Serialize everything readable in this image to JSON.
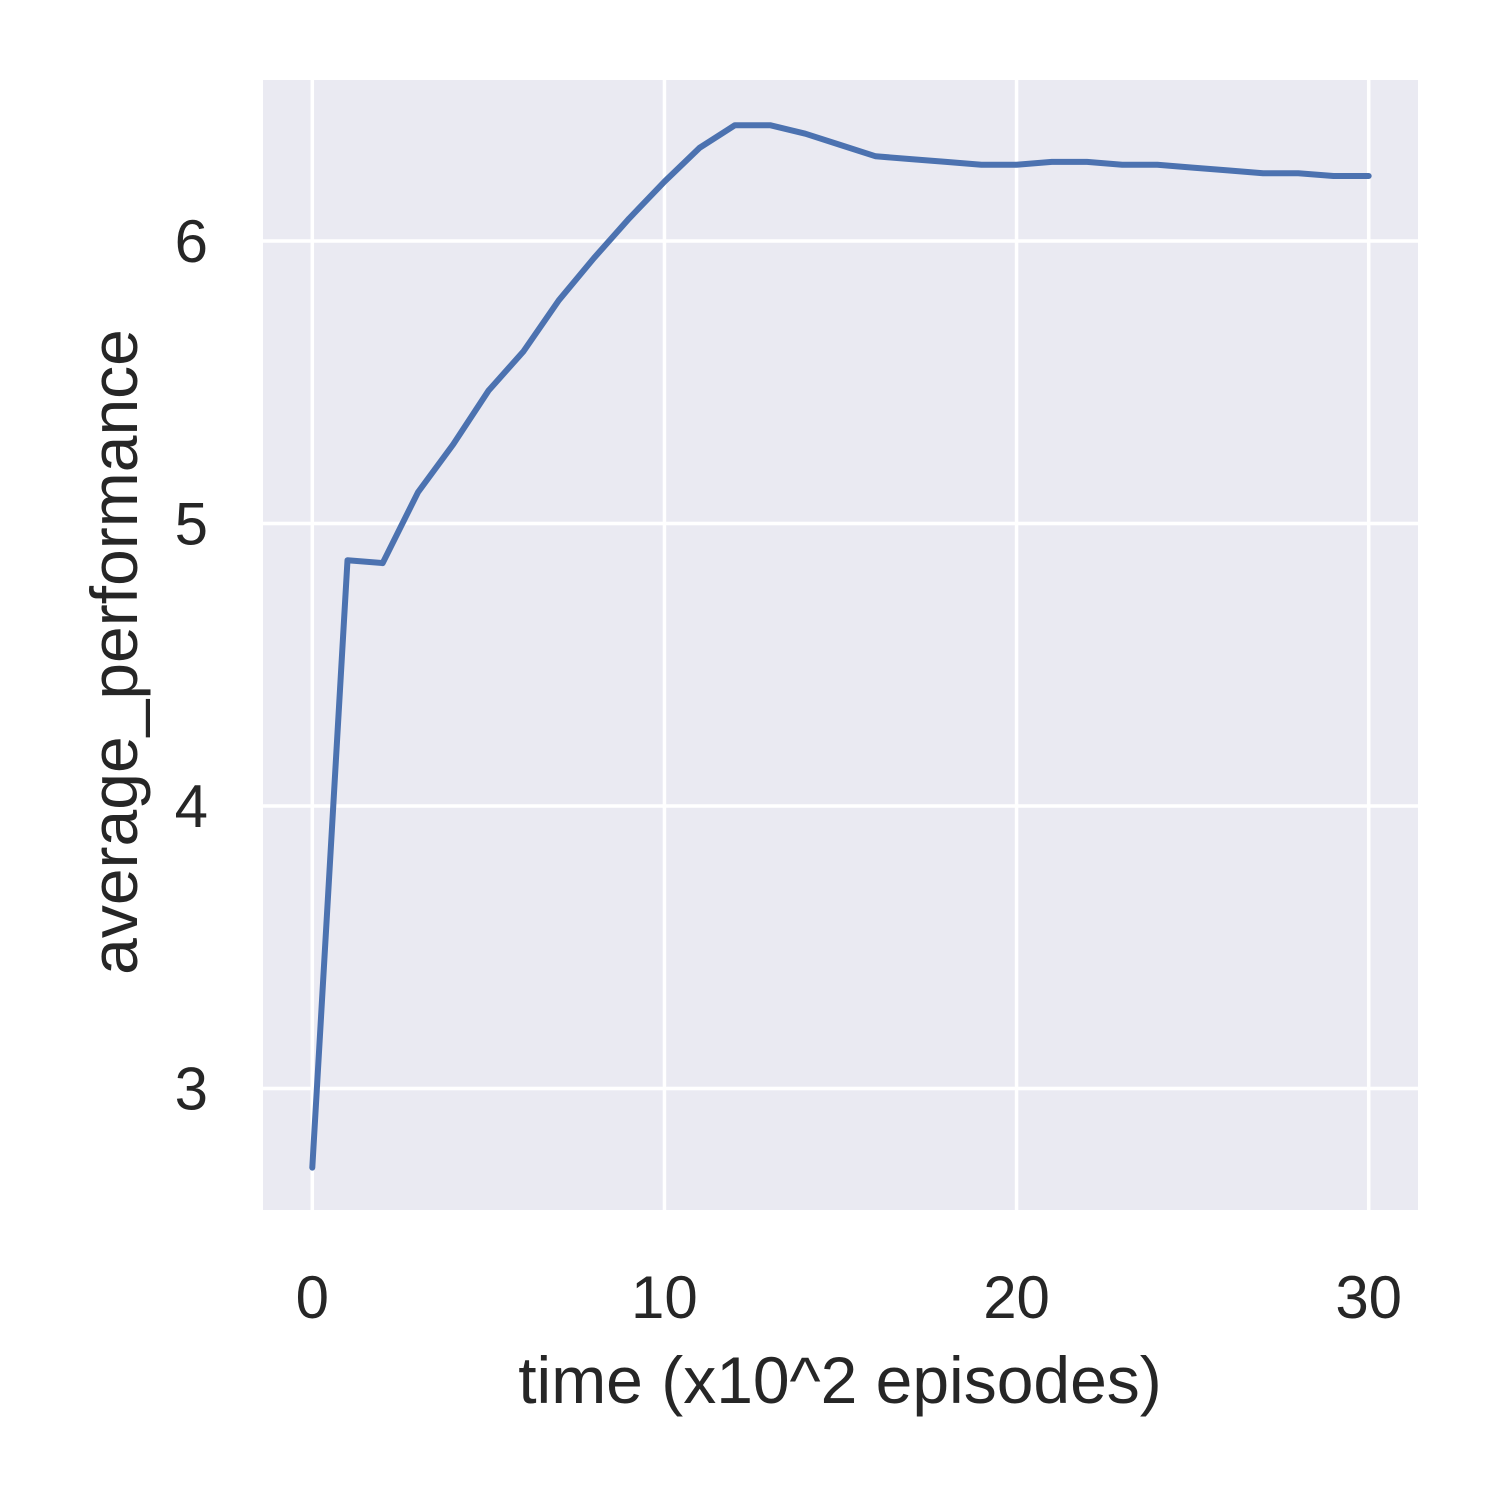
{
  "chart_data": {
    "type": "line",
    "title": "",
    "xlabel": "time (x10^2 episodes)",
    "ylabel": "average_performance",
    "xlim": [
      -1.4,
      31.4
    ],
    "ylim": [
      2.57,
      6.57
    ],
    "xticks": [
      0,
      10,
      20,
      30
    ],
    "yticks": [
      3,
      4,
      5,
      6
    ],
    "grid": true,
    "legend": "none",
    "colors": {
      "background": "#eaeaf2",
      "grid": "#ffffff",
      "series": "#4c72b0",
      "text": "#262626"
    },
    "series": [
      {
        "x": [
          0,
          1,
          2,
          3,
          4,
          5,
          6,
          7,
          8,
          9,
          10,
          11,
          12,
          13,
          14,
          15,
          16,
          17,
          18,
          19,
          20,
          21,
          22,
          23,
          24,
          25,
          26,
          27,
          28,
          29,
          30
        ],
        "values": [
          2.72,
          4.87,
          4.86,
          5.11,
          5.28,
          5.47,
          5.61,
          5.79,
          5.94,
          6.08,
          6.21,
          6.33,
          6.41,
          6.41,
          6.38,
          6.34,
          6.3,
          6.29,
          6.28,
          6.27,
          6.27,
          6.28,
          6.28,
          6.27,
          6.27,
          6.26,
          6.25,
          6.24,
          6.24,
          6.23,
          6.23
        ]
      }
    ]
  }
}
